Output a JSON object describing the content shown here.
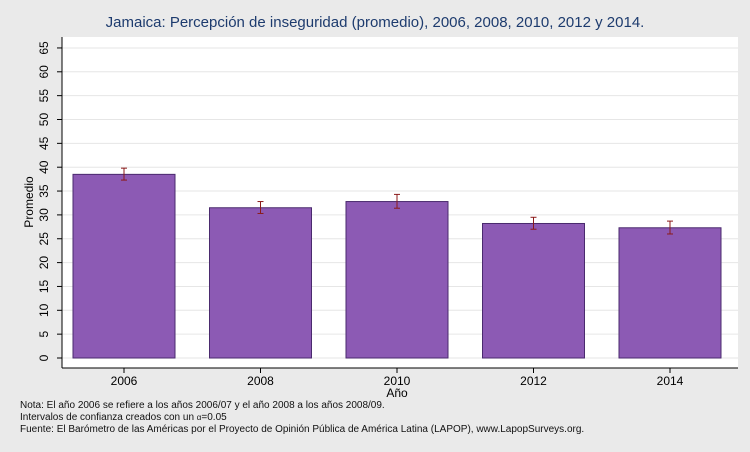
{
  "chart_data": {
    "type": "bar",
    "title": "Jamaica: Percepción de inseguridad (promedio), 2006, 2008, 2010, 2012 y 2014.",
    "xlabel": "Año",
    "ylabel": "Promedio",
    "categories": [
      "2006",
      "2008",
      "2010",
      "2012",
      "2014"
    ],
    "values": [
      38.5,
      31.5,
      32.8,
      28.2,
      27.3
    ],
    "ci_lower": [
      37.3,
      30.3,
      31.4,
      27.0,
      26.0
    ],
    "ci_upper": [
      39.8,
      32.8,
      34.3,
      29.5,
      28.7
    ],
    "ylim": [
      0,
      67
    ],
    "yticks": [
      0,
      5,
      10,
      15,
      20,
      25,
      30,
      35,
      40,
      45,
      50,
      55,
      60,
      65
    ],
    "grid": true,
    "legend": "none",
    "colors": {
      "bar": "#8c5ab4",
      "bar_edge": "#4a2a6e",
      "error_bar": "#8b1a1a",
      "plot_background": "#ffffff",
      "page_background": "#eaeaea",
      "title": "#1d3b6e"
    }
  },
  "notes": {
    "line1": "Nota: El año 2006 se refiere a los años 2006/07 y el año 2008 a los años 2008/09.",
    "line2_prefix": "Intervalos de confianza creados con un ",
    "line2_alpha": "α",
    "line2_suffix": "=0.05",
    "line3": "Fuente: El Barómetro de las Américas por el Proyecto de Opinión Pública de América Latina (LAPOP), www.LapopSurveys.org."
  }
}
